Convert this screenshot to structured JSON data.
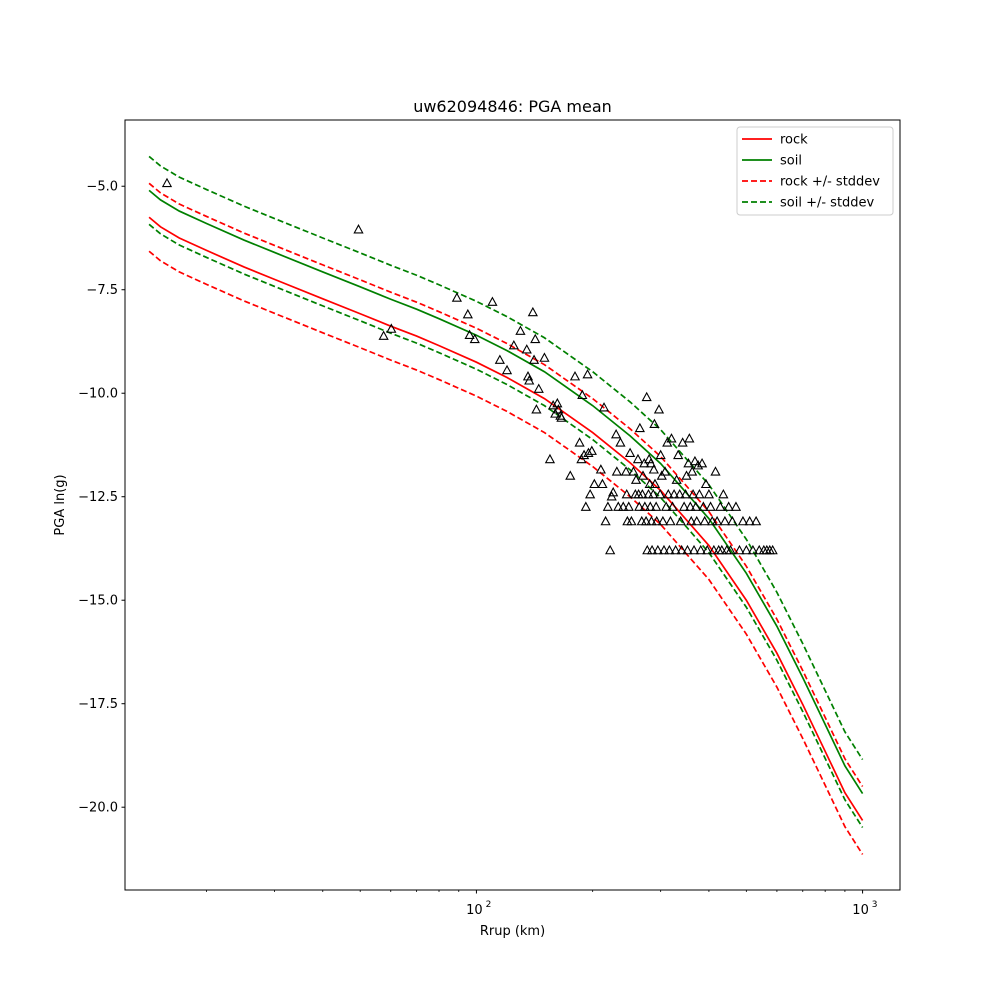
{
  "chart_data": {
    "type": "line",
    "title": "uw62094846: PGA mean",
    "xlabel": "Rrup (km)",
    "ylabel": "PGA ln(g)",
    "xscale": "log",
    "xlim": [
      12.3,
      1250
    ],
    "ylim": [
      -22.0,
      -3.4
    ],
    "xticks": [
      {
        "value": 100,
        "base": "10",
        "exp": "2"
      },
      {
        "value": 1000,
        "base": "10",
        "exp": "3"
      }
    ],
    "yticks": [
      {
        "value": -5.0,
        "label": "−5.0"
      },
      {
        "value": -7.5,
        "label": "−7.5"
      },
      {
        "value": -10.0,
        "label": "−10.0"
      },
      {
        "value": -12.5,
        "label": "−12.5"
      },
      {
        "value": -15.0,
        "label": "−15.0"
      },
      {
        "value": -17.5,
        "label": "−17.5"
      },
      {
        "value": -20.0,
        "label": "−20.0"
      }
    ],
    "grid": false,
    "legend_position": "top-right",
    "series": [
      {
        "name": "rock",
        "color": "#ff0000",
        "style": "solid",
        "x": [
          14.2,
          15.2,
          17.0,
          20,
          25,
          30,
          40,
          50,
          60,
          70,
          80,
          100,
          120,
          150,
          200,
          250,
          300,
          400,
          500,
          600,
          700,
          800,
          900,
          1000
        ],
        "y": [
          -5.75,
          -5.98,
          -6.25,
          -6.55,
          -6.95,
          -7.25,
          -7.72,
          -8.08,
          -8.38,
          -8.62,
          -8.85,
          -9.25,
          -9.62,
          -10.13,
          -10.95,
          -11.68,
          -12.35,
          -13.68,
          -15.0,
          -16.28,
          -17.52,
          -18.65,
          -19.65,
          -20.32
        ]
      },
      {
        "name": "soil",
        "color": "#008000",
        "style": "solid",
        "x": [
          14.2,
          15.2,
          17.0,
          20,
          25,
          30,
          40,
          50,
          60,
          70,
          80,
          100,
          120,
          150,
          200,
          250,
          300,
          400,
          500,
          600,
          700,
          800,
          900,
          1000
        ],
        "y": [
          -5.1,
          -5.33,
          -5.6,
          -5.9,
          -6.3,
          -6.6,
          -7.07,
          -7.43,
          -7.73,
          -7.97,
          -8.2,
          -8.6,
          -8.97,
          -9.48,
          -10.3,
          -11.03,
          -11.7,
          -13.03,
          -14.35,
          -15.63,
          -16.87,
          -18.0,
          -19.0,
          -19.67
        ]
      },
      {
        "name": "rock +/- stddev",
        "color": "#ff0000",
        "style": "dashed",
        "x": [
          14.2,
          15.2,
          17.0,
          20,
          25,
          30,
          40,
          50,
          60,
          70,
          80,
          100,
          120,
          150,
          200,
          250,
          300,
          400,
          500,
          600,
          700,
          800,
          900,
          1000
        ],
        "y": [
          -4.93,
          -5.16,
          -5.43,
          -5.73,
          -6.13,
          -6.43,
          -6.9,
          -7.26,
          -7.56,
          -7.8,
          -8.03,
          -8.43,
          -8.8,
          -9.31,
          -10.13,
          -10.86,
          -11.53,
          -12.86,
          -14.18,
          -15.46,
          -16.7,
          -17.83,
          -18.83,
          -19.5
        ]
      },
      {
        "name": "rock lower",
        "color": "#ff0000",
        "style": "dashed",
        "x": [
          14.2,
          15.2,
          17.0,
          20,
          25,
          30,
          40,
          50,
          60,
          70,
          80,
          100,
          120,
          150,
          200,
          250,
          300,
          400,
          500,
          600,
          700,
          800,
          900,
          1000
        ],
        "y": [
          -6.57,
          -6.8,
          -7.07,
          -7.37,
          -7.77,
          -8.07,
          -8.54,
          -8.9,
          -9.2,
          -9.44,
          -9.67,
          -10.07,
          -10.44,
          -10.95,
          -11.77,
          -12.5,
          -13.17,
          -14.5,
          -15.82,
          -17.1,
          -18.34,
          -19.47,
          -20.47,
          -21.14
        ]
      },
      {
        "name": "soil +/- stddev",
        "color": "#008000",
        "style": "dashed",
        "x": [
          14.2,
          15.2,
          17.0,
          20,
          25,
          30,
          40,
          50,
          60,
          70,
          80,
          100,
          120,
          150,
          200,
          250,
          300,
          400,
          500,
          600,
          700,
          800,
          900,
          1000
        ],
        "y": [
          -4.28,
          -4.51,
          -4.78,
          -5.08,
          -5.48,
          -5.78,
          -6.25,
          -6.61,
          -6.91,
          -7.15,
          -7.38,
          -7.78,
          -8.15,
          -8.66,
          -9.48,
          -10.21,
          -10.88,
          -12.21,
          -13.53,
          -14.81,
          -16.05,
          -17.18,
          -18.18,
          -18.85
        ]
      },
      {
        "name": "soil lower",
        "color": "#008000",
        "style": "dashed",
        "x": [
          14.2,
          15.2,
          17.0,
          20,
          25,
          30,
          40,
          50,
          60,
          70,
          80,
          100,
          120,
          150,
          200,
          250,
          300,
          400,
          500,
          600,
          700,
          800,
          900,
          1000
        ],
        "y": [
          -5.92,
          -6.15,
          -6.42,
          -6.72,
          -7.12,
          -7.42,
          -7.89,
          -8.25,
          -8.55,
          -8.79,
          -9.02,
          -9.42,
          -9.79,
          -10.3,
          -11.12,
          -11.85,
          -12.52,
          -13.85,
          -15.17,
          -16.45,
          -17.69,
          -18.82,
          -19.82,
          -20.49
        ]
      }
    ],
    "observations": {
      "marker": "triangle",
      "color": "#000000",
      "points": [
        [
          15.8,
          -4.93
        ],
        [
          49.5,
          -6.05
        ],
        [
          57.5,
          -8.62
        ],
        [
          60.2,
          -8.45
        ],
        [
          89,
          -7.7
        ],
        [
          95,
          -8.1
        ],
        [
          96,
          -8.6
        ],
        [
          99,
          -8.7
        ],
        [
          110,
          -7.8
        ],
        [
          115,
          -9.2
        ],
        [
          120,
          -9.45
        ],
        [
          125,
          -8.85
        ],
        [
          130,
          -8.5
        ],
        [
          135,
          -8.95
        ],
        [
          136,
          -9.6
        ],
        [
          137,
          -9.7
        ],
        [
          140,
          -8.05
        ],
        [
          141,
          -9.2
        ],
        [
          142,
          -8.7
        ],
        [
          143,
          -10.4
        ],
        [
          145,
          -9.9
        ],
        [
          150,
          -9.15
        ],
        [
          155,
          -11.6
        ],
        [
          158,
          -10.3
        ],
        [
          160,
          -10.5
        ],
        [
          162,
          -10.25
        ],
        [
          163,
          -10.4
        ],
        [
          165,
          -10.55
        ],
        [
          166,
          -10.6
        ],
        [
          175,
          -12.0
        ],
        [
          180,
          -9.6
        ],
        [
          185,
          -11.2
        ],
        [
          187,
          -11.6
        ],
        [
          188,
          -10.05
        ],
        [
          190,
          -11.5
        ],
        [
          192,
          -12.75
        ],
        [
          194,
          -9.55
        ],
        [
          195,
          -11.45
        ],
        [
          197,
          -12.45
        ],
        [
          199,
          -11.4
        ],
        [
          202,
          -12.2
        ],
        [
          210,
          -11.85
        ],
        [
          212,
          -12.2
        ],
        [
          214,
          -10.35
        ],
        [
          216,
          -13.1
        ],
        [
          219,
          -12.75
        ],
        [
          222,
          -13.8
        ],
        [
          224,
          -12.5
        ],
        [
          226,
          -12.4
        ],
        [
          230,
          -11.0
        ],
        [
          231,
          -11.9
        ],
        [
          233,
          -12.75
        ],
        [
          236,
          -11.2
        ],
        [
          240,
          -12.75
        ],
        [
          244,
          -11.9
        ],
        [
          245,
          -12.45
        ],
        [
          246,
          -13.1
        ],
        [
          248,
          -12.75
        ],
        [
          250,
          -11.45
        ],
        [
          252,
          -13.1
        ],
        [
          255,
          -11.9
        ],
        [
          258,
          -12.45
        ],
        [
          259,
          -12.1
        ],
        [
          262,
          -11.6
        ],
        [
          263,
          -12.45
        ],
        [
          264,
          -12.75
        ],
        [
          265,
          -10.85
        ],
        [
          268,
          -13.1
        ],
        [
          269,
          -12.45
        ],
        [
          270,
          -12.0
        ],
        [
          272,
          -11.7
        ],
        [
          273,
          -12.75
        ],
        [
          275,
          -13.1
        ],
        [
          276,
          -10.1
        ],
        [
          277,
          -13.8
        ],
        [
          279,
          -12.45
        ],
        [
          280,
          -11.6
        ],
        [
          281,
          -12.2
        ],
        [
          282,
          -12.75
        ],
        [
          283,
          -11.7
        ],
        [
          284,
          -13.1
        ],
        [
          285,
          -13.8
        ],
        [
          287,
          -12.45
        ],
        [
          288,
          -11.85
        ],
        [
          289,
          -10.75
        ],
        [
          290,
          -12.2
        ],
        [
          292,
          -12.75
        ],
        [
          293,
          -13.1
        ],
        [
          295,
          -13.8
        ],
        [
          297,
          -10.4
        ],
        [
          299,
          -12.45
        ],
        [
          300,
          -11.5
        ],
        [
          302,
          -12.0
        ],
        [
          304,
          -13.1
        ],
        [
          306,
          -13.8
        ],
        [
          308,
          -11.9
        ],
        [
          310,
          -12.75
        ],
        [
          312,
          -11.2
        ],
        [
          314,
          -12.45
        ],
        [
          316,
          -13.8
        ],
        [
          318,
          -13.1
        ],
        [
          320,
          -11.1
        ],
        [
          322,
          -12.75
        ],
        [
          325,
          -12.45
        ],
        [
          328,
          -13.8
        ],
        [
          330,
          -12.1
        ],
        [
          333,
          -11.5
        ],
        [
          336,
          -12.45
        ],
        [
          338,
          -13.1
        ],
        [
          340,
          -13.8
        ],
        [
          342,
          -11.2
        ],
        [
          345,
          -12.75
        ],
        [
          348,
          -12.45
        ],
        [
          350,
          -12.0
        ],
        [
          352,
          -13.8
        ],
        [
          354,
          -11.7
        ],
        [
          356,
          -11.1
        ],
        [
          358,
          -12.75
        ],
        [
          360,
          -13.1
        ],
        [
          362,
          -11.9
        ],
        [
          364,
          -12.45
        ],
        [
          366,
          -13.8
        ],
        [
          368,
          -11.65
        ],
        [
          370,
          -12.75
        ],
        [
          372,
          -13.1
        ],
        [
          375,
          -11.75
        ],
        [
          378,
          -12.45
        ],
        [
          381,
          -13.8
        ],
        [
          384,
          -11.7
        ],
        [
          387,
          -12.75
        ],
        [
          390,
          -13.1
        ],
        [
          393,
          -12.2
        ],
        [
          396,
          -13.8
        ],
        [
          400,
          -12.45
        ],
        [
          404,
          -12.75
        ],
        [
          408,
          -13.1
        ],
        [
          412,
          -13.8
        ],
        [
          416,
          -11.9
        ],
        [
          420,
          -13.1
        ],
        [
          424,
          -13.8
        ],
        [
          428,
          -12.75
        ],
        [
          432,
          -13.8
        ],
        [
          436,
          -12.45
        ],
        [
          440,
          -13.1
        ],
        [
          445,
          -13.8
        ],
        [
          450,
          -12.75
        ],
        [
          455,
          -13.8
        ],
        [
          460,
          -13.1
        ],
        [
          470,
          -12.75
        ],
        [
          480,
          -13.8
        ],
        [
          490,
          -13.1
        ],
        [
          500,
          -13.8
        ],
        [
          510,
          -13.1
        ],
        [
          520,
          -13.8
        ],
        [
          530,
          -13.1
        ],
        [
          540,
          -13.8
        ],
        [
          555,
          -13.8
        ],
        [
          565,
          -13.8
        ],
        [
          575,
          -13.8
        ],
        [
          585,
          -13.8
        ]
      ]
    }
  },
  "legend": {
    "items": [
      {
        "label": "rock",
        "color": "#ff0000",
        "dash": false
      },
      {
        "label": "soil",
        "color": "#008000",
        "dash": false
      },
      {
        "label": "rock +/- stddev",
        "color": "#ff0000",
        "dash": true
      },
      {
        "label": "soil +/- stddev",
        "color": "#008000",
        "dash": true
      }
    ]
  }
}
